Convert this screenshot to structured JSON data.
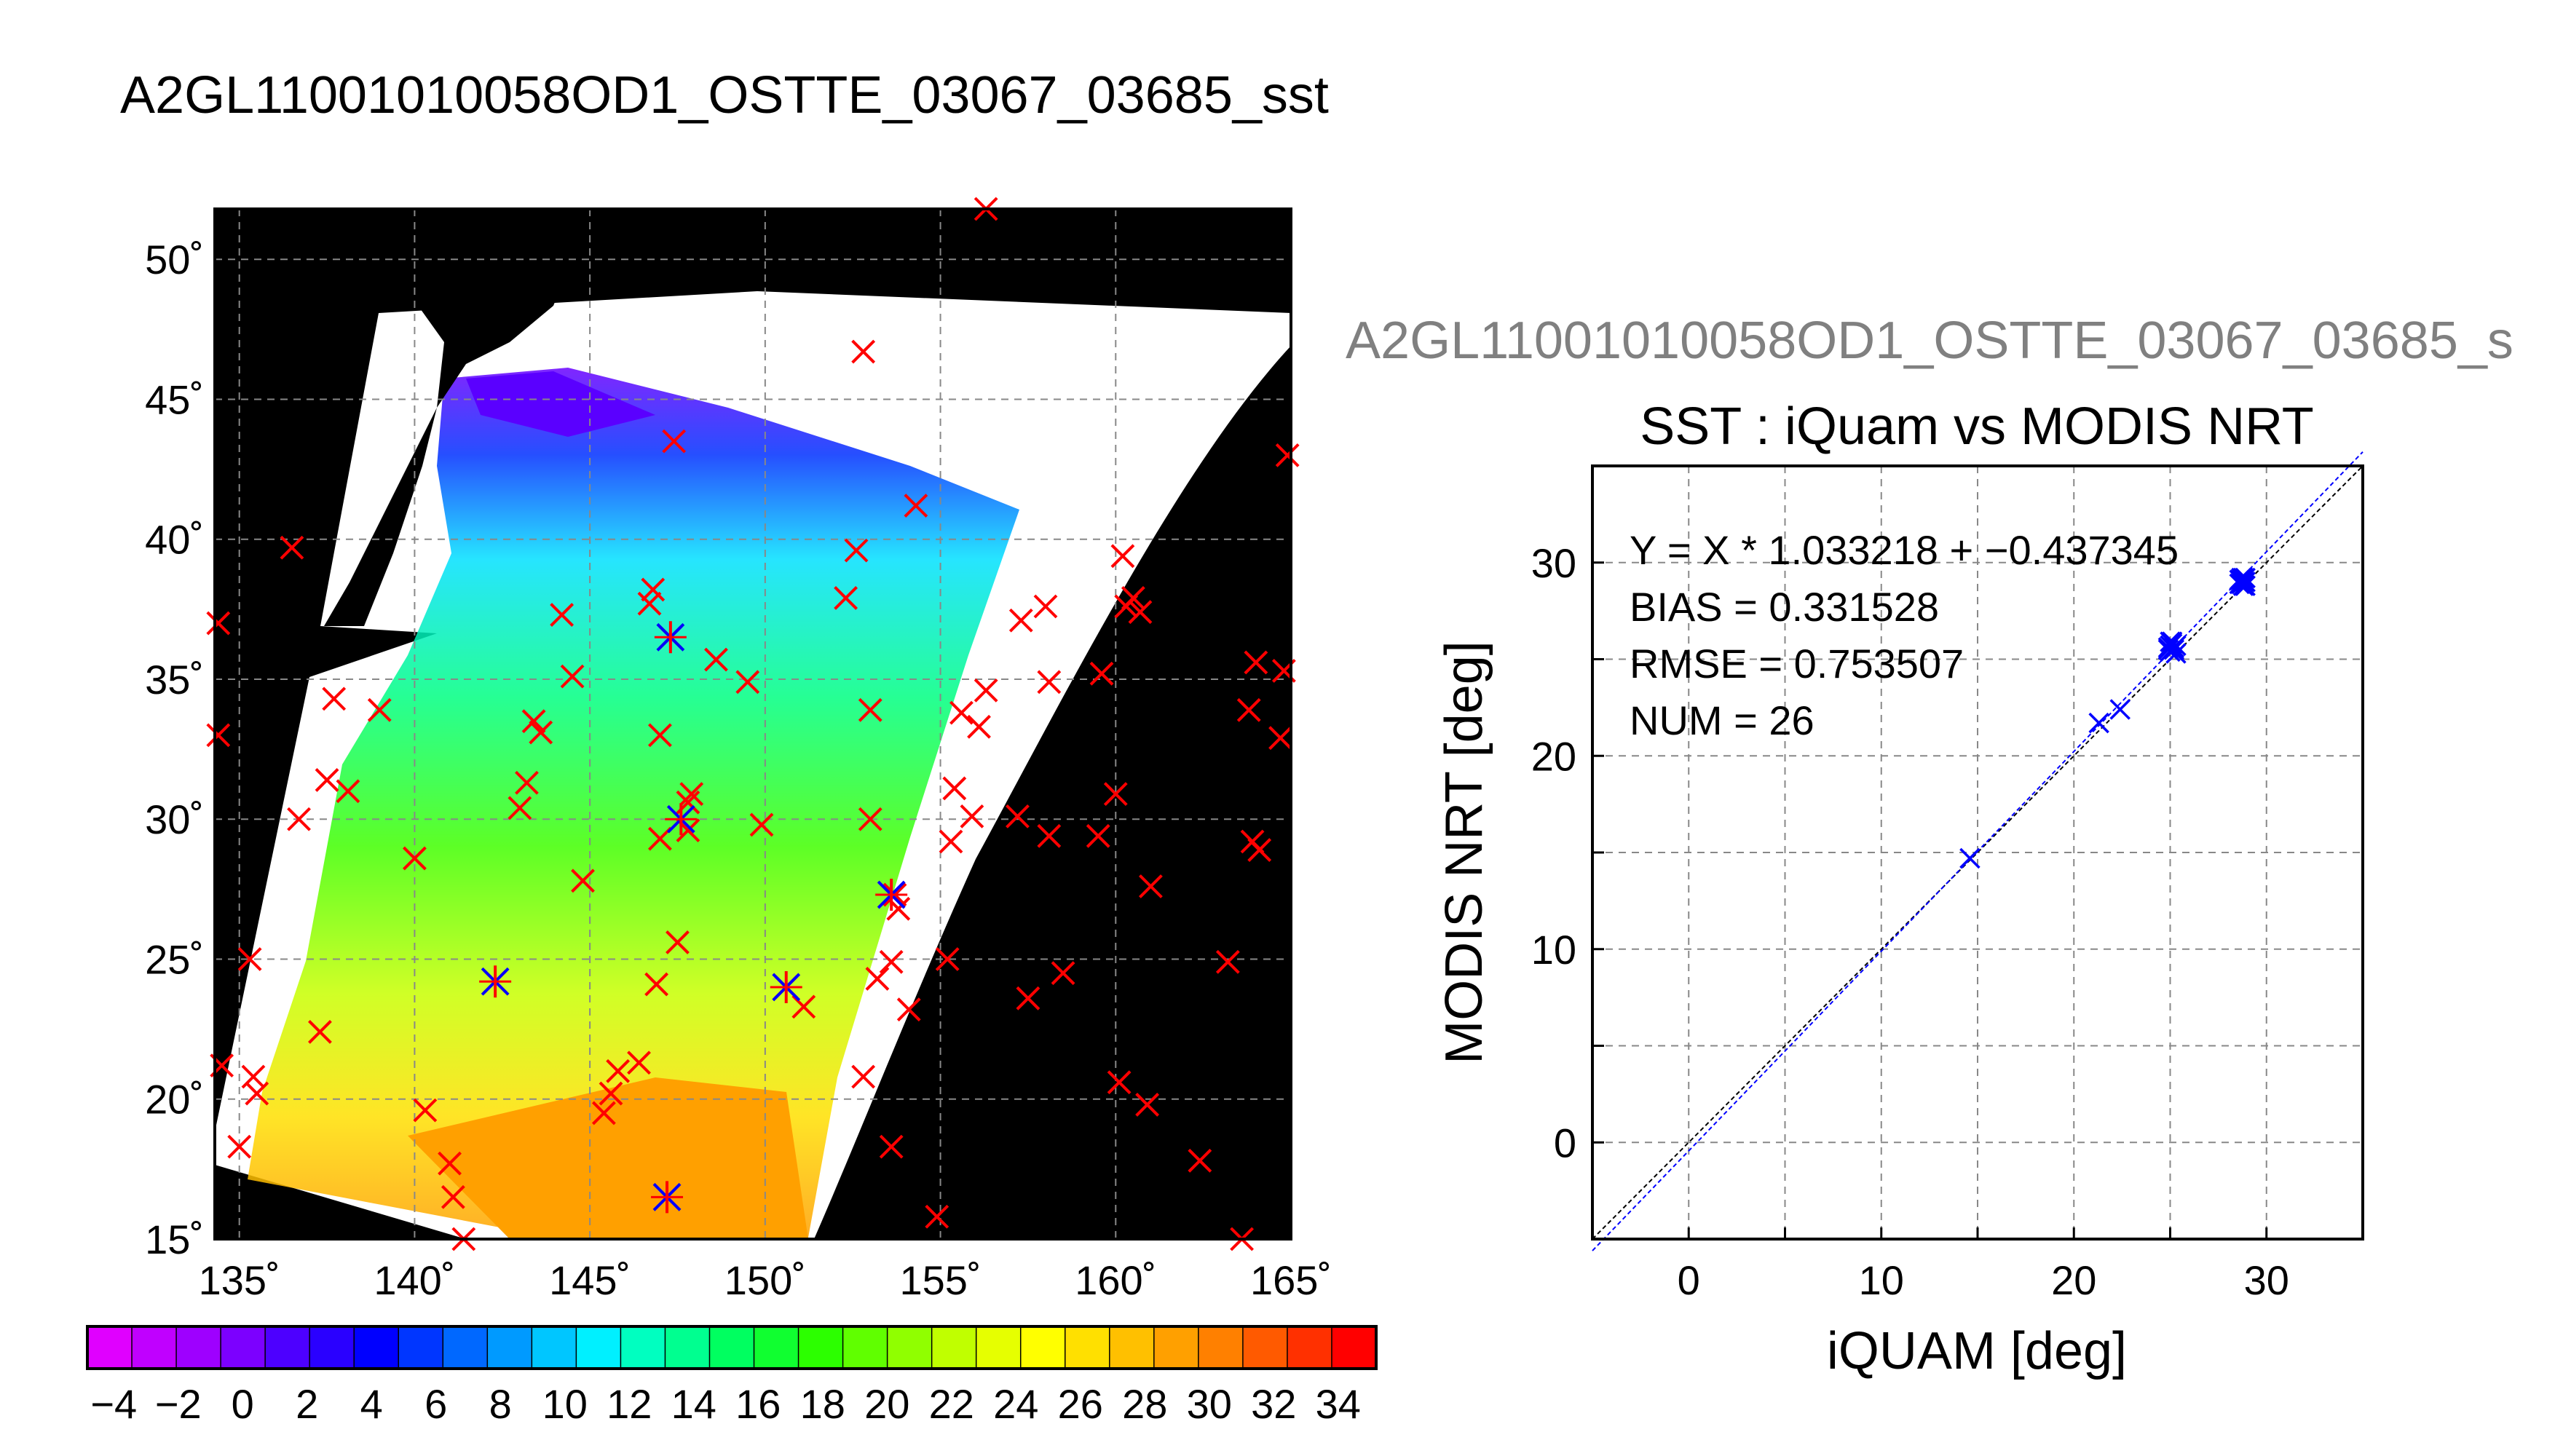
{
  "page": {
    "main_title": "A2GL11001010058OD1_OSTTE_03067_03685_sst",
    "secondary_title": "A2GL11001010058OD1_OSTTE_03067_03685_s"
  },
  "colors": {
    "match_marker": "#ff0000",
    "iquam_marker": "#0000ff",
    "land": "#000000",
    "fit_line": "#0000ff",
    "one_to_one_line": "#000000"
  },
  "map": {
    "lon_ticks": [
      "135˚",
      "140˚",
      "145˚",
      "150˚",
      "155˚",
      "160˚",
      "165˚"
    ],
    "lat_ticks": [
      "50˚",
      "45˚",
      "40˚",
      "35˚",
      "30˚",
      "25˚",
      "20˚",
      "15˚"
    ],
    "lon_range": [
      134.3,
      165
    ],
    "lat_range": [
      15,
      51.8
    ],
    "grid": true,
    "match_points": [
      [
        134.4,
        37.0
      ],
      [
        134.4,
        33.0
      ],
      [
        134.5,
        21.2
      ],
      [
        135.0,
        18.3
      ],
      [
        135.3,
        25.0
      ],
      [
        135.4,
        20.8
      ],
      [
        135.5,
        20.2
      ],
      [
        136.5,
        39.7
      ],
      [
        136.7,
        30.0
      ],
      [
        137.3,
        22.4
      ],
      [
        137.5,
        31.4
      ],
      [
        137.7,
        34.3
      ],
      [
        138.1,
        31.0
      ],
      [
        139.0,
        33.9
      ],
      [
        140.0,
        28.6
      ],
      [
        140.3,
        19.6
      ],
      [
        141.0,
        17.7
      ],
      [
        141.1,
        16.5
      ],
      [
        141.4,
        15.0
      ],
      [
        142.3,
        24.2
      ],
      [
        143.0,
        30.4
      ],
      [
        143.2,
        31.3
      ],
      [
        143.4,
        33.5
      ],
      [
        143.6,
        33.1
      ],
      [
        144.2,
        37.3
      ],
      [
        144.5,
        35.1
      ],
      [
        144.8,
        27.8
      ],
      [
        145.4,
        19.5
      ],
      [
        145.6,
        20.2
      ],
      [
        145.8,
        21.0
      ],
      [
        146.4,
        21.3
      ],
      [
        146.7,
        37.7
      ],
      [
        146.8,
        38.2
      ],
      [
        146.9,
        24.1
      ],
      [
        147.0,
        33.0
      ],
      [
        147.0,
        29.3
      ],
      [
        147.3,
        36.5
      ],
      [
        147.4,
        43.5
      ],
      [
        147.5,
        25.6
      ],
      [
        147.8,
        29.6
      ],
      [
        147.8,
        30.6
      ],
      [
        147.9,
        30.9
      ],
      [
        148.6,
        35.7
      ],
      [
        149.5,
        34.9
      ],
      [
        149.9,
        29.8
      ],
      [
        150.6,
        24.0
      ],
      [
        151.1,
        23.3
      ],
      [
        152.3,
        37.9
      ],
      [
        152.6,
        39.6
      ],
      [
        152.8,
        20.8
      ],
      [
        152.8,
        46.7
      ],
      [
        153.0,
        33.9
      ],
      [
        153.0,
        30.0
      ],
      [
        153.2,
        24.3
      ],
      [
        153.6,
        18.3
      ],
      [
        153.6,
        24.9
      ],
      [
        153.7,
        27.3
      ],
      [
        153.8,
        26.8
      ],
      [
        154.1,
        23.2
      ],
      [
        154.3,
        41.2
      ],
      [
        154.9,
        15.8
      ],
      [
        155.2,
        25.0
      ],
      [
        155.3,
        29.2
      ],
      [
        155.4,
        31.1
      ],
      [
        155.6,
        33.8
      ],
      [
        155.9,
        30.1
      ],
      [
        156.1,
        33.3
      ],
      [
        156.3,
        34.6
      ],
      [
        156.3,
        51.8
      ],
      [
        157.2,
        30.1
      ],
      [
        157.3,
        37.1
      ],
      [
        157.5,
        23.6
      ],
      [
        158.0,
        37.6
      ],
      [
        158.1,
        29.4
      ],
      [
        158.1,
        34.9
      ],
      [
        158.5,
        24.5
      ],
      [
        159.5,
        29.4
      ],
      [
        159.6,
        35.2
      ],
      [
        160.0,
        30.9
      ],
      [
        160.1,
        20.6
      ],
      [
        160.2,
        39.4
      ],
      [
        160.3,
        37.6
      ],
      [
        160.5,
        37.9
      ],
      [
        160.7,
        37.4
      ],
      [
        160.9,
        19.8
      ],
      [
        161.0,
        27.6
      ],
      [
        162.4,
        17.8
      ],
      [
        163.2,
        24.9
      ],
      [
        163.6,
        15.0
      ],
      [
        163.8,
        33.9
      ],
      [
        163.9,
        29.2
      ],
      [
        164.0,
        35.6
      ],
      [
        164.1,
        28.9
      ],
      [
        164.7,
        32.9
      ],
      [
        164.8,
        35.3
      ],
      [
        164.9,
        43.0
      ]
    ],
    "iquam_points": [
      [
        147.3,
        36.5
      ],
      [
        147.6,
        30.0
      ],
      [
        142.3,
        24.2
      ],
      [
        150.6,
        24.0
      ],
      [
        153.6,
        27.3
      ],
      [
        147.2,
        16.5
      ]
    ]
  },
  "colorbar": {
    "labels": [
      "−4",
      "−2",
      "0",
      "2",
      "4",
      "6",
      "8",
      "10",
      "12",
      "14",
      "16",
      "18",
      "20",
      "22",
      "24",
      "26",
      "28",
      "30",
      "32",
      "34"
    ],
    "range": [
      -5,
      35
    ],
    "colors": [
      "#e000ff",
      "#c000ff",
      "#9e00ff",
      "#7c00ff",
      "#4d00ff",
      "#2a00ff",
      "#0000ff",
      "#0036ff",
      "#0068ff",
      "#009aff",
      "#00c6ff",
      "#00f0ff",
      "#00ffc0",
      "#00ff90",
      "#00ff60",
      "#10ff30",
      "#2cff00",
      "#60ff00",
      "#90ff00",
      "#c0ff00",
      "#e6ff00",
      "#ffff00",
      "#ffe000",
      "#ffc000",
      "#ffa000",
      "#ff8000",
      "#ff5a00",
      "#ff3000",
      "#ff0000"
    ]
  },
  "chart_data": {
    "type": "scatter",
    "title": "SST : iQuam vs MODIS NRT",
    "xlabel": "iQUAM [deg]",
    "ylabel": "MODIS NRT [deg]",
    "xlim": [
      -5,
      35
    ],
    "ylim": [
      -5,
      35
    ],
    "xticks": [
      "0",
      "10",
      "20",
      "30"
    ],
    "yticks": [
      "0",
      "10",
      "20",
      "30"
    ],
    "grid": true,
    "annotations": [
      "Y = X * 1.033218 + −0.437345",
      "BIAS = 0.331528",
      "RMSE = 0.753507",
      "NUM = 26"
    ],
    "fit": {
      "slope": 1.033218,
      "intercept": -0.437345
    },
    "series": [
      {
        "values": [
          [
            14.6,
            14.7
          ],
          [
            21.3,
            21.7
          ],
          [
            22.4,
            22.4
          ],
          [
            24.9,
            25.5
          ],
          [
            25.0,
            25.7
          ],
          [
            25.1,
            25.9
          ],
          [
            25.0,
            25.4
          ],
          [
            25.2,
            25.6
          ],
          [
            25.3,
            25.3
          ],
          [
            25.1,
            25.8
          ],
          [
            25.2,
            25.5
          ],
          [
            25.0,
            25.9
          ],
          [
            25.3,
            25.7
          ],
          [
            24.9,
            25.6
          ],
          [
            28.6,
            28.9
          ],
          [
            28.7,
            29.2
          ],
          [
            28.8,
            29.0
          ],
          [
            28.9,
            29.2
          ],
          [
            28.7,
            29.1
          ],
          [
            28.8,
            28.8
          ],
          [
            28.6,
            29.1
          ],
          [
            28.9,
            29.0
          ],
          [
            28.7,
            28.9
          ],
          [
            28.8,
            29.2
          ],
          [
            28.9,
            28.8
          ],
          [
            28.7,
            29.0
          ]
        ]
      }
    ]
  }
}
